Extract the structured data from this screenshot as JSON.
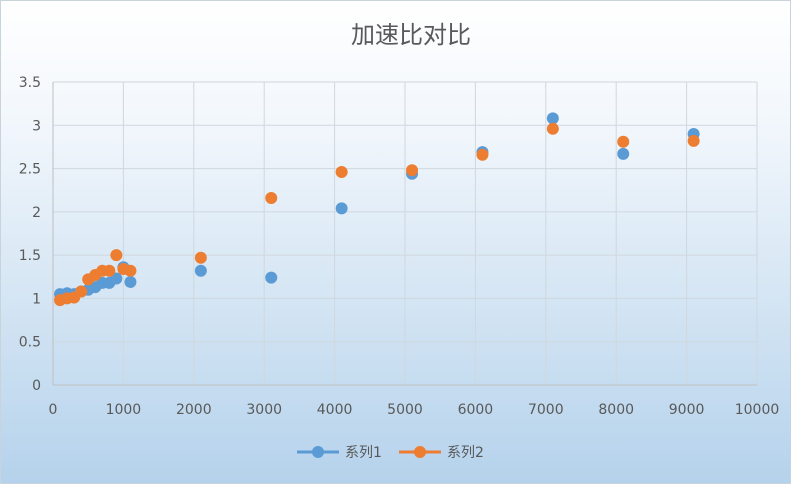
{
  "chart_data": {
    "type": "scatter",
    "title": "加速比对比",
    "xlim": [
      0,
      10000
    ],
    "ylim": [
      0,
      3.5
    ],
    "x_ticks": [
      "0",
      "1000",
      "2000",
      "3000",
      "4000",
      "5000",
      "6000",
      "7000",
      "8000",
      "9000",
      "10000"
    ],
    "y_ticks": [
      "0",
      "0.5",
      "1",
      "1.5",
      "2",
      "2.5",
      "3",
      "3.5"
    ],
    "grid": true,
    "legend_position": "bottom",
    "series": [
      {
        "name": "系列1",
        "color": "#5b9bd5",
        "points": [
          [
            100,
            1.05
          ],
          [
            200,
            1.06
          ],
          [
            300,
            1.05
          ],
          [
            400,
            1.08
          ],
          [
            500,
            1.1
          ],
          [
            600,
            1.13
          ],
          [
            700,
            1.18
          ],
          [
            800,
            1.18
          ],
          [
            900,
            1.23
          ],
          [
            1000,
            1.36
          ],
          [
            1100,
            1.19
          ],
          [
            2100,
            1.32
          ],
          [
            3100,
            1.24
          ],
          [
            4100,
            2.04
          ],
          [
            5100,
            2.44
          ],
          [
            6100,
            2.69
          ],
          [
            7100,
            3.08
          ],
          [
            8100,
            2.67
          ],
          [
            9100,
            2.9
          ]
        ]
      },
      {
        "name": "系列2",
        "color": "#ed7d31",
        "points": [
          [
            100,
            0.98
          ],
          [
            200,
            1.0
          ],
          [
            300,
            1.01
          ],
          [
            400,
            1.08
          ],
          [
            500,
            1.22
          ],
          [
            600,
            1.27
          ],
          [
            700,
            1.32
          ],
          [
            800,
            1.32
          ],
          [
            900,
            1.5
          ],
          [
            1000,
            1.34
          ],
          [
            1100,
            1.32
          ],
          [
            2100,
            1.47
          ],
          [
            3100,
            2.16
          ],
          [
            4100,
            2.46
          ],
          [
            5100,
            2.48
          ],
          [
            6100,
            2.66
          ],
          [
            7100,
            2.96
          ],
          [
            8100,
            2.81
          ],
          [
            9100,
            2.82
          ]
        ]
      }
    ]
  }
}
